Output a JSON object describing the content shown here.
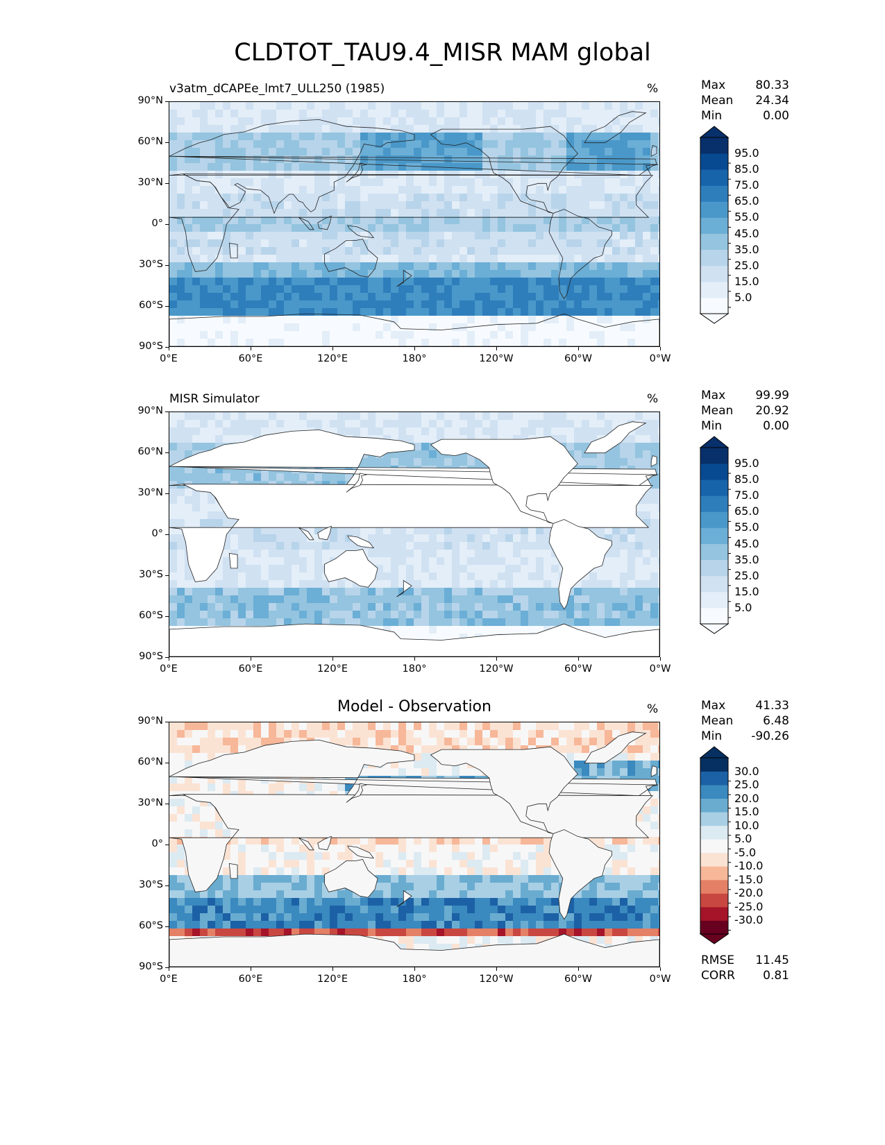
{
  "figure": {
    "title": "CLDTOT_TAU9.4_MISR MAM global"
  },
  "axes": {
    "lat_labels": [
      "90°N",
      "60°N",
      "30°N",
      "0°",
      "30°S",
      "60°S",
      "90°S"
    ],
    "lon_labels": [
      "0°E",
      "60°E",
      "120°E",
      "180°",
      "120°W",
      "60°W",
      "0°W"
    ]
  },
  "panels": [
    {
      "title": "v3atm_dCAPEe_lmt7_ULL250 (1985)",
      "units": "%",
      "stats": [
        {
          "label": "Max",
          "value": "80.33"
        },
        {
          "label": "Mean",
          "value": "24.34"
        },
        {
          "label": "Min",
          "value": "0.00"
        }
      ],
      "colorbar_labels": [
        "95.0",
        "85.0",
        "75.0",
        "65.0",
        "55.0",
        "45.0",
        "35.0",
        "25.0",
        "15.0",
        "5.0"
      ]
    },
    {
      "title": "MISR Simulator",
      "units": "%",
      "stats": [
        {
          "label": "Max",
          "value": "99.99"
        },
        {
          "label": "Mean",
          "value": "20.92"
        },
        {
          "label": "Min",
          "value": "0.00"
        }
      ],
      "colorbar_labels": [
        "95.0",
        "85.0",
        "75.0",
        "65.0",
        "55.0",
        "45.0",
        "35.0",
        "25.0",
        "15.0",
        "5.0"
      ]
    },
    {
      "title": "Model - Observation",
      "units": "%",
      "stats": [
        {
          "label": "Max",
          "value": "41.33"
        },
        {
          "label": "Mean",
          "value": "6.48"
        },
        {
          "label": "Min",
          "value": "-90.26"
        }
      ],
      "colorbar_labels": [
        "30.0",
        "25.0",
        "20.0",
        "15.0",
        "10.0",
        "5.0",
        "-5.0",
        "-10.0",
        "-15.0",
        "-20.0",
        "-25.0",
        "-30.0"
      ],
      "metrics": [
        {
          "label": "RMSE",
          "value": "11.45"
        },
        {
          "label": "CORR",
          "value": "0.81"
        }
      ]
    }
  ],
  "colors": {
    "blues": [
      "#f7fbff",
      "#e3eef8",
      "#d0e1f2",
      "#b7d4ea",
      "#94c4df",
      "#6baed6",
      "#4a98c9",
      "#2e7ebc",
      "#1764ab",
      "#084a91",
      "#08306b"
    ],
    "diverging": [
      "#67001f",
      "#a51429",
      "#c94741",
      "#e48066",
      "#f7b799",
      "#fbe3d4",
      "#f7f7f7",
      "#dceaf2",
      "#a9cfe5",
      "#6aacd0",
      "#3a89bf",
      "#1c61a5",
      "#053061"
    ]
  }
}
